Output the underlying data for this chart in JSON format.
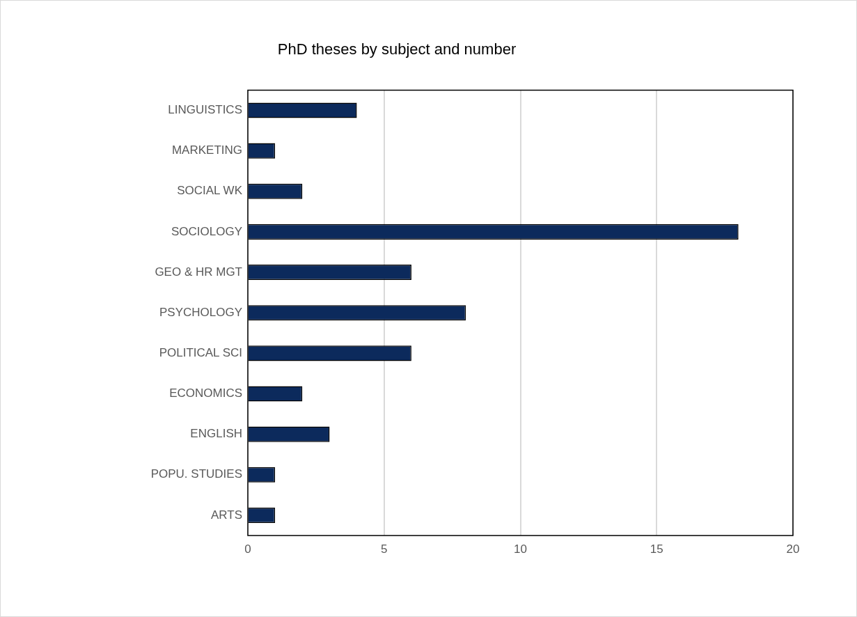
{
  "chart_data": {
    "type": "bar",
    "orientation": "horizontal",
    "title": "PhD theses by subject and number",
    "categories": [
      "LINGUISTICS",
      "MARKETING",
      "SOCIAL WK",
      "SOCIOLOGY",
      "GEO & HR MGT",
      "PSYCHOLOGY",
      "POLITICAL SCI",
      "ECONOMICS",
      "ENGLISH",
      "POPU. STUDIES",
      "ARTS"
    ],
    "values": [
      4,
      1,
      2,
      18,
      6,
      8,
      6,
      2,
      3,
      1,
      1
    ],
    "color": "#0c2a5c",
    "xlim": [
      0,
      20
    ],
    "xticks": [
      0,
      5,
      10,
      15,
      20
    ],
    "grid": "x",
    "legend": false
  }
}
